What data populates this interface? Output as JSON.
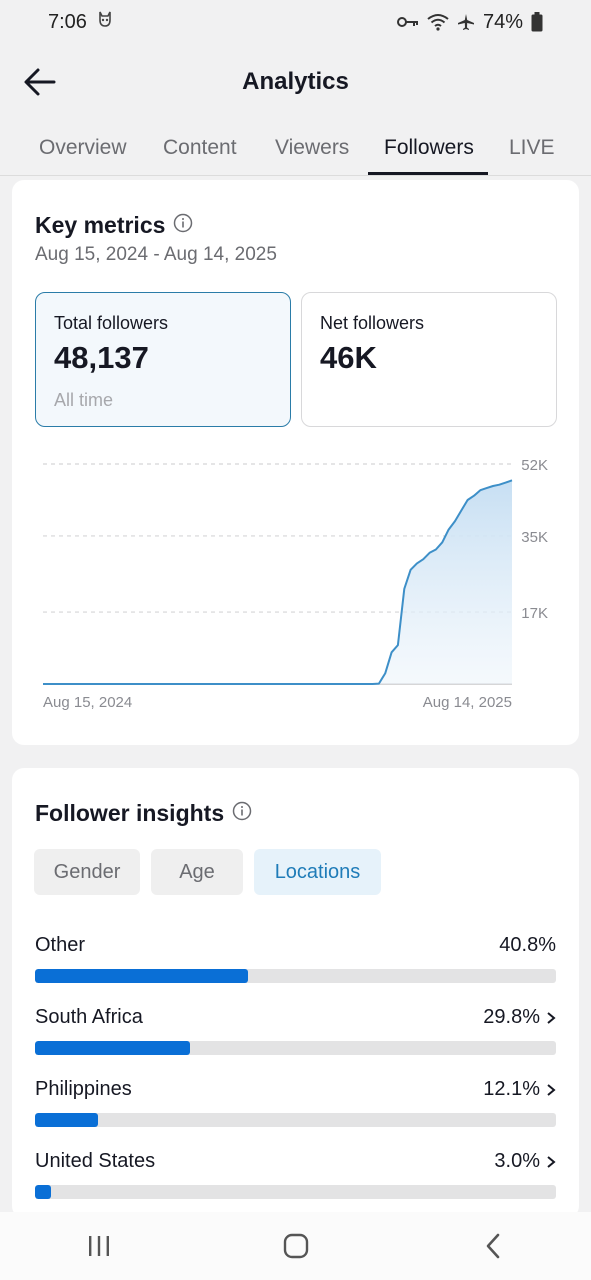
{
  "status": {
    "time": "7:06",
    "battery": "74%"
  },
  "header": {
    "title": "Analytics"
  },
  "tabs": [
    {
      "label": "Overview"
    },
    {
      "label": "Content"
    },
    {
      "label": "Viewers"
    },
    {
      "label": "Followers"
    },
    {
      "label": "LIVE"
    }
  ],
  "key_metrics": {
    "title": "Key metrics",
    "date_range": "Aug 15, 2024 - Aug 14, 2025",
    "total": {
      "label": "Total followers",
      "value": "48,137",
      "sub": "All time"
    },
    "net": {
      "label": "Net followers",
      "value": "46K"
    }
  },
  "chart_data": {
    "type": "area",
    "x_start_label": "Aug 15, 2024",
    "x_end_label": "Aug 14, 2025",
    "y_tick_labels": [
      "52K",
      "35K",
      "17K"
    ],
    "y_ticks": [
      52000,
      35000,
      17000
    ],
    "ylim": [
      0,
      52000
    ],
    "grid": true,
    "line_color": "#3d8fc8",
    "y_values": [
      0,
      0,
      0,
      0,
      0,
      0,
      0,
      0,
      0,
      0,
      0,
      0,
      0,
      0,
      0,
      0,
      0,
      0,
      0,
      0,
      0,
      0,
      0,
      0,
      0,
      0,
      0,
      0,
      0,
      0,
      0,
      0,
      0,
      0,
      0,
      0,
      0,
      0,
      0,
      0,
      0,
      0,
      0,
      0,
      0,
      0,
      0,
      0,
      0,
      0,
      0,
      0,
      0,
      100,
      2500,
      7500,
      9200,
      22500,
      27000,
      28500,
      29500,
      31000,
      31800,
      33500,
      36500,
      38500,
      41000,
      43500,
      44500,
      45800,
      46300,
      46800,
      47100,
      47600,
      48137
    ]
  },
  "follower_insights": {
    "title": "Follower insights",
    "pills": [
      {
        "label": "Gender"
      },
      {
        "label": "Age"
      },
      {
        "label": "Locations"
      }
    ],
    "locations": [
      {
        "name": "Other",
        "pct_label": "40.8%",
        "pct": 40.8,
        "chevron": false
      },
      {
        "name": "South Africa",
        "pct_label": "29.8%",
        "pct": 29.8,
        "chevron": true
      },
      {
        "name": "Philippines",
        "pct_label": "12.1%",
        "pct": 12.1,
        "chevron": true
      },
      {
        "name": "United States",
        "pct_label": "3.0%",
        "pct": 3.0,
        "chevron": true
      }
    ]
  },
  "colors": {
    "accent": "#1f7cb8",
    "bar_fill": "#0a6fd6"
  },
  "nav": {
    "icons": [
      "recent-apps-icon",
      "home-icon",
      "back-icon"
    ]
  }
}
